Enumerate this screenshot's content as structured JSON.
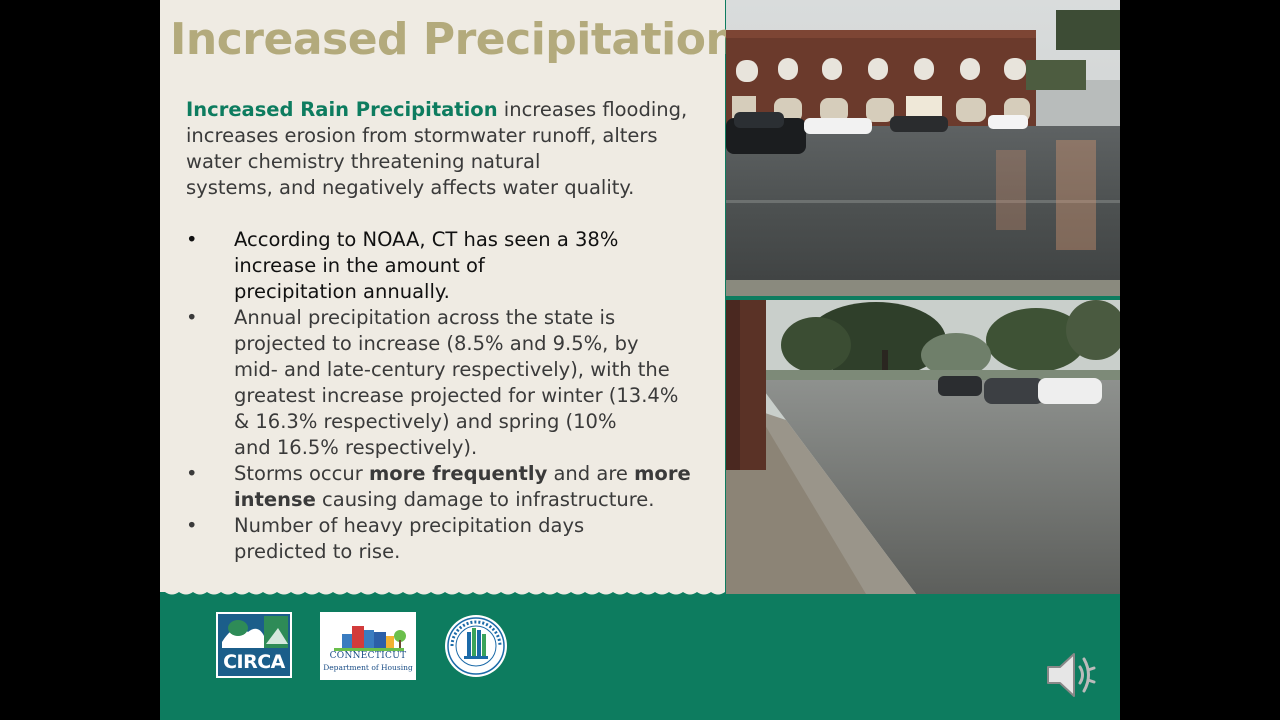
{
  "title": "Increased Precipitation",
  "intro": {
    "lead": "Increased Rain Precipitation",
    "line1_rest": " increases flooding,",
    "line2": "increases erosion from stormwater runoff, alters",
    "line3": "water chemistry threatening natural",
    "line4": "systems, and negatively affects water quality."
  },
  "bullets": [
    {
      "lines": [
        "According to NOAA, CT has seen a 38%",
        "increase in the amount of",
        "precipitation annually."
      ]
    },
    {
      "lines": [
        "Annual precipitation across the state is",
        "projected to increase (8.5% and 9.5%, by",
        "mid- and late-century respectively), with the",
        "greatest increase projected for winter (13.4%",
        "& 16.3% respectively) and spring (10%",
        "and 16.5% respectively)."
      ]
    },
    {
      "a": "Storms occur ",
      "b1": "more frequently",
      "c": " and are ",
      "b2": "more",
      "b3": "intense",
      "d": " causing damage to infrastructure."
    },
    {
      "lines": [
        "Number of heavy precipitation days",
        "predicted to rise."
      ]
    }
  ],
  "bullet_char": "•",
  "logos": {
    "circa": "CIRCA",
    "ct_name": "CONNECTICUT",
    "ct_sub": "Department of Housing"
  },
  "colors": {
    "accent_green": "#0d7c5f",
    "title_tan": "#b3aa7c",
    "background": "#efebe3"
  },
  "icons": {
    "speaker": "speaker-icon"
  }
}
